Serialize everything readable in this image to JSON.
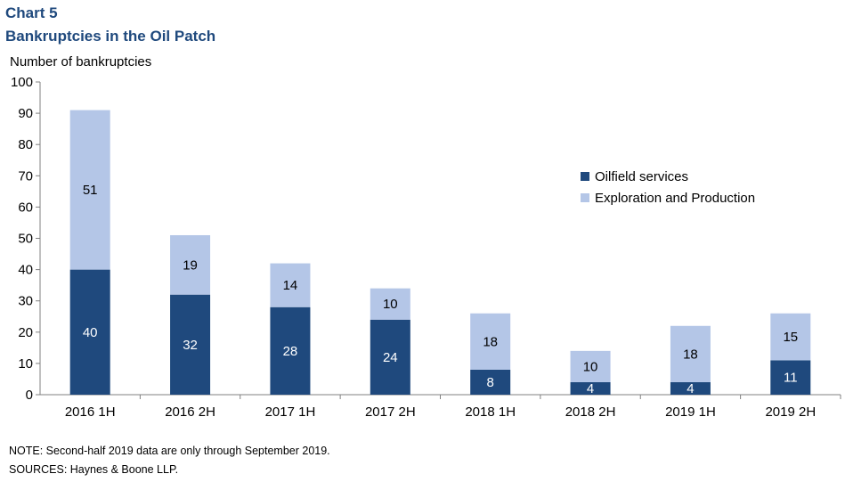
{
  "header": {
    "chart_label": "Chart 5",
    "title": "Bankruptcies in the Oil Patch"
  },
  "footer": {
    "note": "NOTE: Second-half 2019 data are only through September 2019.",
    "source": "SOURCES: Haynes & Boone LLP."
  },
  "colors": {
    "oilfield": "#1f497d",
    "exploration": "#b4c6e7",
    "axis": "#808080"
  },
  "chart_data": {
    "type": "bar",
    "stacked": true,
    "title": "Bankruptcies in the Oil Patch",
    "ylabel": "Number of bankruptcies",
    "xlabel": "",
    "ylim": [
      0,
      100
    ],
    "yticks": [
      0,
      10,
      20,
      30,
      40,
      50,
      60,
      70,
      80,
      90,
      100
    ],
    "grid": false,
    "legend_position": "right",
    "categories": [
      "2016 1H",
      "2016 2H",
      "2017 1H",
      "2017 2H",
      "2018 1H",
      "2018 2H",
      "2019 1H",
      "2019 2H"
    ],
    "series": [
      {
        "name": "Oilfield services",
        "values": [
          40,
          32,
          28,
          24,
          8,
          4,
          4,
          11
        ],
        "color": "#1f497d"
      },
      {
        "name": "Exploration and Production",
        "values": [
          51,
          19,
          14,
          10,
          18,
          10,
          18,
          15
        ],
        "color": "#b4c6e7"
      }
    ]
  }
}
